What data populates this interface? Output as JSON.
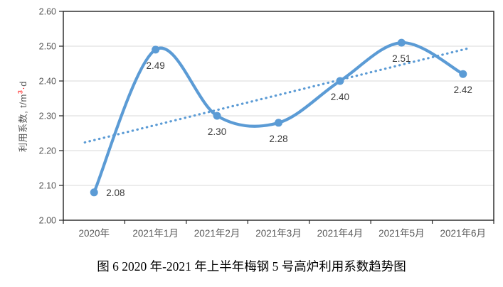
{
  "caption": "图 6 2020 年-2021 年上半年梅钢 5 号高炉利用系数趋势图",
  "chart_data": {
    "type": "line",
    "title": "",
    "categories": [
      "2020年",
      "2021年1月",
      "2021年2月",
      "2021年3月",
      "2021年4月",
      "2021年5月",
      "2021年6月"
    ],
    "series": [
      {
        "name": "利用系数",
        "values": [
          2.08,
          2.49,
          2.3,
          2.28,
          2.4,
          2.51,
          2.42
        ],
        "smooth": true
      }
    ],
    "data_labels": [
      "2.08",
      "2.49",
      "2.30",
      "2.28",
      "2.40",
      "2.51",
      "2.42"
    ],
    "trendline": {
      "style": "dotted",
      "start_value": 2.23,
      "end_value": 2.49
    },
    "ylabel_parts": {
      "prefix": "利用系数, t/m",
      "sup": "3",
      "middot": "·",
      "suffix": "d"
    },
    "yticks": [
      "2.00",
      "2.10",
      "2.20",
      "2.30",
      "2.40",
      "2.50",
      "2.60"
    ],
    "ylim": [
      2.0,
      2.6
    ],
    "xlabel": "",
    "grid": true,
    "legend": "none",
    "colors": {
      "line": "#5B9BD5",
      "marker": "#5B9BD5",
      "trend": "#5B9BD5",
      "grid": "#D9D9D9",
      "axis_line": "#222222",
      "axis_text": "#595959",
      "data_label": "#3b3b3b",
      "superscript": "#ff0000"
    }
  }
}
